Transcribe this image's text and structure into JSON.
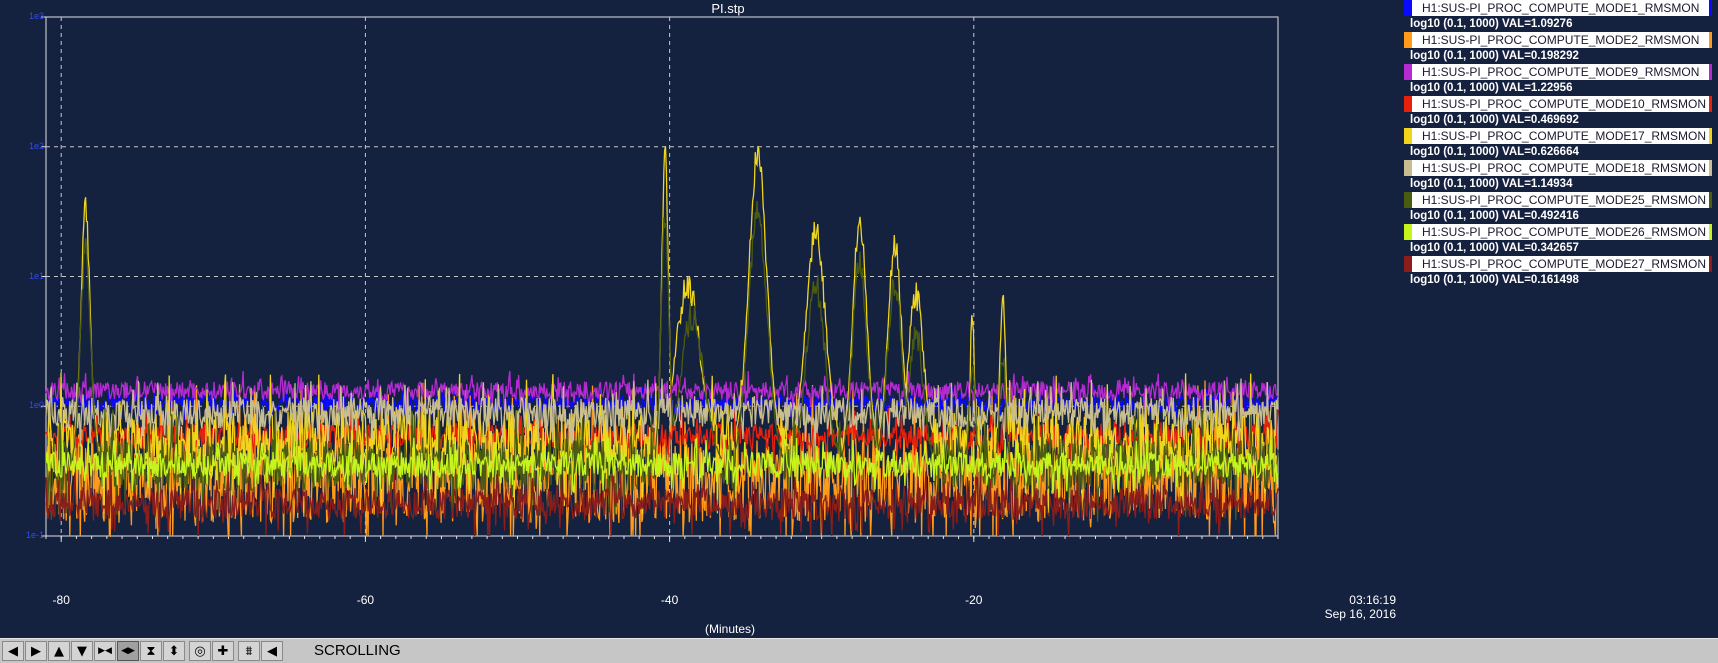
{
  "window": {
    "title": "PI.stp"
  },
  "colors": {
    "background": "#15223f",
    "grid": "#c8c8c8",
    "axis_tick_labels_y": "#3049ff",
    "toolbar_bg": "#c6c6c6"
  },
  "chart_data": {
    "type": "line",
    "title": "PI.stp",
    "xlabel": "(Minutes)",
    "ylabel": "",
    "xlim": [
      -81,
      0
    ],
    "ylim": [
      -1,
      3
    ],
    "y_scale": "log10",
    "x_ticks": [
      "-80",
      "-60",
      "-40",
      "-20"
    ],
    "x_tick_values": [
      -80,
      -60,
      -40,
      -20
    ],
    "y_ticks": [
      "1e-1",
      "1e0",
      "1e1",
      "1e2",
      "1e3"
    ],
    "y_tick_values": [
      -1,
      0,
      1,
      2,
      3
    ],
    "time_label": {
      "time": "03:16:19",
      "date": "Sep 16, 2016"
    },
    "grid": true,
    "legend_position": "right",
    "series": [
      {
        "name": "H1:SUS-PI_PROC_COMPUTE_MODE1_RMSMON",
        "color": "#0a0aff",
        "scale": "log10 (0.1, 1000)",
        "value": "VAL=1.09276",
        "base": 0.02,
        "noise": 0.06,
        "peaks": []
      },
      {
        "name": "H1:SUS-PI_PROC_COMPUTE_MODE2_RMSMON",
        "color": "#ff9a1a",
        "scale": "log10 (0.1, 1000)",
        "value": "VAL=0.198292",
        "base": -0.55,
        "noise": 0.35,
        "peaks": []
      },
      {
        "name": "H1:SUS-PI_PROC_COMPUTE_MODE9_RMSMON",
        "color": "#b32bd1",
        "scale": "log10 (0.1, 1000)",
        "value": "VAL=1.22956",
        "base": 0.12,
        "noise": 0.07,
        "peaks": []
      },
      {
        "name": "H1:SUS-PI_PROC_COMPUTE_MODE10_RMSMON",
        "color": "#e8210d",
        "scale": "log10 (0.1, 1000)",
        "value": "VAL=0.469692",
        "base": -0.23,
        "noise": 0.1,
        "peaks": []
      },
      {
        "name": "H1:SUS-PI_PROC_COMPUTE_MODE17_RMSMON",
        "color": "#f0d51c",
        "scale": "log10 (0.1, 1000)",
        "value": "VAL=0.626664",
        "base": -0.28,
        "noise": 0.25,
        "peaks": [
          [
            -78.4,
            1.5,
            0.6
          ],
          [
            -40.3,
            1.95,
            0.45
          ],
          [
            -38.8,
            0.95,
            1.6
          ],
          [
            -34.2,
            1.95,
            1.2
          ],
          [
            -30.4,
            1.35,
            1.3
          ],
          [
            -27.5,
            1.45,
            0.9
          ],
          [
            -25.2,
            1.25,
            0.9
          ],
          [
            -23.8,
            0.85,
            1.0
          ],
          [
            -20.1,
            0.75,
            0.25
          ],
          [
            -18.1,
            0.85,
            0.35
          ]
        ]
      },
      {
        "name": "H1:SUS-PI_PROC_COMPUTE_MODE18_RMSMON",
        "color": "#c8bd8f",
        "scale": "log10 (0.1, 1000)",
        "value": "VAL=1.14934",
        "base": -0.05,
        "noise": 0.12,
        "peaks": []
      },
      {
        "name": "H1:SUS-PI_PROC_COMPUTE_MODE25_RMSMON",
        "color": "#4a5b12",
        "scale": "log10 (0.1, 1000)",
        "value": "VAL=0.492416",
        "base": -0.45,
        "noise": 0.2,
        "peaks": [
          [
            -78.4,
            1.2,
            0.7
          ],
          [
            -40.3,
            1.45,
            0.55
          ],
          [
            -38.5,
            0.7,
            1.6
          ],
          [
            -34.2,
            1.5,
            1.3
          ],
          [
            -30.4,
            0.95,
            1.3
          ],
          [
            -27.5,
            1.1,
            1.0
          ],
          [
            -25.2,
            0.95,
            1.0
          ],
          [
            -23.8,
            0.55,
            1.0
          ],
          [
            -20.1,
            0.3,
            0.4
          ],
          [
            -18.1,
            0.4,
            0.4
          ]
        ]
      },
      {
        "name": "H1:SUS-PI_PROC_COMPUTE_MODE26_RMSMON",
        "color": "#c6f51e",
        "scale": "log10 (0.1, 1000)",
        "value": "VAL=0.342657",
        "base": -0.45,
        "noise": 0.1,
        "peaks": []
      },
      {
        "name": "H1:SUS-PI_PROC_COMPUTE_MODE27_RMSMON",
        "color": "#8b1d1a",
        "scale": "log10 (0.1, 1000)",
        "value": "VAL=0.161498",
        "base": -0.75,
        "noise": 0.12,
        "peaks": []
      }
    ]
  },
  "toolbar": {
    "mode_label": "SCROLLING",
    "buttons": [
      {
        "name": "scroll-left-icon",
        "glyph": "◀"
      },
      {
        "name": "scroll-right-icon",
        "glyph": "▶"
      },
      {
        "name": "scroll-up-icon",
        "glyph": "▲"
      },
      {
        "name": "scroll-down-icon",
        "glyph": "▼"
      },
      {
        "name": "expand-horizontal-icon",
        "glyph": "▶◀"
      },
      {
        "name": "compress-horizontal-icon",
        "glyph": "◀▶",
        "active": true
      },
      {
        "name": "expand-vertical-icon",
        "glyph": "⧗"
      },
      {
        "name": "compress-vertical-icon",
        "glyph": "⬍"
      },
      {
        "name": "zoom-circle-icon",
        "glyph": "◎"
      },
      {
        "name": "crosshair-icon",
        "glyph": "✚"
      },
      {
        "name": "autoscale-icon",
        "glyph": "⩩"
      },
      {
        "name": "scroll-mode-icon",
        "glyph": "◀"
      }
    ]
  }
}
